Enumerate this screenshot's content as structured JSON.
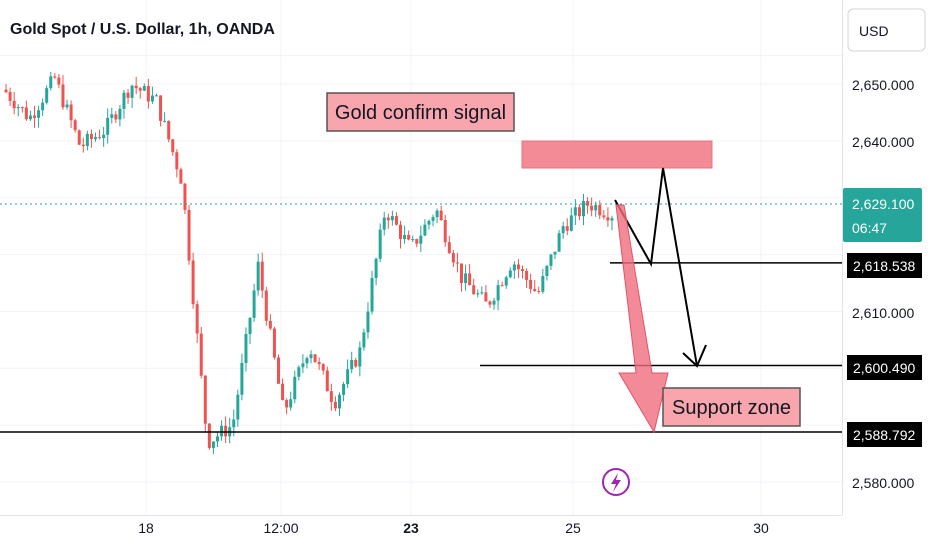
{
  "chart_title": "Gold Spot / U.S. Dollar, 1h, OANDA",
  "currency": "USD",
  "colors": {
    "up": "#26a69a",
    "down": "#ef5350",
    "price_tag": "#26a69a",
    "annotation_fill": "#f8a5ad",
    "resistance_box": "#f28b96",
    "arrow_fill": "#f06d7d",
    "badge": "#9c27b0"
  },
  "chart_data": {
    "type": "candlestick",
    "title": "Gold Spot / U.S. Dollar, 1h, OANDA",
    "ylim": [
      2575,
      2656
    ],
    "y_ticks": [
      "2,650.000",
      "2,640.000",
      "2,610.000",
      "2,580.000"
    ],
    "x_ticks": [
      "18",
      "12:00",
      "23",
      "25",
      "30"
    ],
    "current_price": {
      "value": "2,629.100",
      "countdown": "06:47"
    },
    "price_tags": [
      "2,618.538",
      "2,600.490",
      "2,588.792"
    ],
    "levels": [
      2618.538,
      2600.49,
      2588.792
    ],
    "anchors": [
      2649,
      2644,
      2651,
      2639,
      2642,
      2650,
      2647,
      2633,
      2587,
      2590,
      2618,
      2592,
      2604,
      2594,
      2603,
      2628,
      2621,
      2628,
      2616,
      2611,
      2619,
      2613,
      2625,
      2629,
      2627
    ],
    "annotations": {
      "signal_label": "Gold confirm signal",
      "support_label": "Support zone"
    }
  }
}
